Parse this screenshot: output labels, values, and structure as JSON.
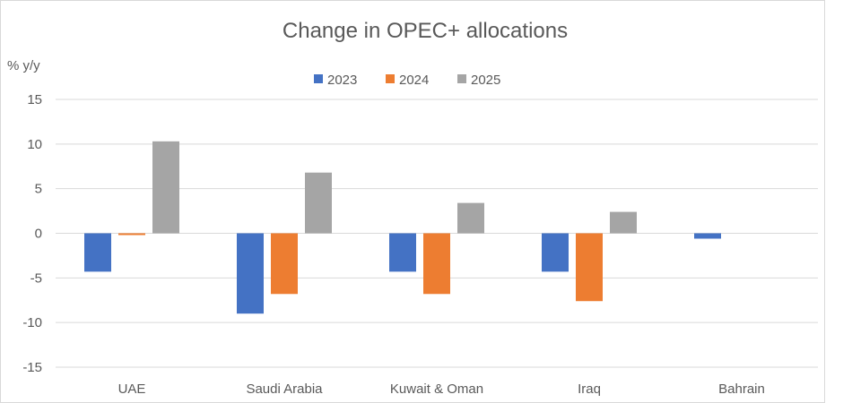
{
  "chart_data": {
    "type": "bar",
    "title": "Change in OPEC+ allocations",
    "ylabel": "% y/y",
    "xlabel": "",
    "categories": [
      "UAE",
      "Saudi Arabia",
      "Kuwait & Oman",
      "Iraq",
      "Bahrain"
    ],
    "series": [
      {
        "name": "2023",
        "color": "#4472c4",
        "values": [
          -4.3,
          -9.0,
          -4.3,
          -4.3,
          -0.6
        ]
      },
      {
        "name": "2024",
        "color": "#ed7d31",
        "values": [
          -0.2,
          -6.8,
          -6.8,
          -7.6,
          null
        ]
      },
      {
        "name": "2025",
        "color": "#a5a5a5",
        "values": [
          10.3,
          6.8,
          3.4,
          2.4,
          null
        ]
      }
    ],
    "ylim": [
      -15,
      15
    ],
    "yticks": [
      15,
      10,
      5,
      0,
      -5,
      -10,
      -15
    ],
    "grid": true,
    "legend_position": "top"
  }
}
